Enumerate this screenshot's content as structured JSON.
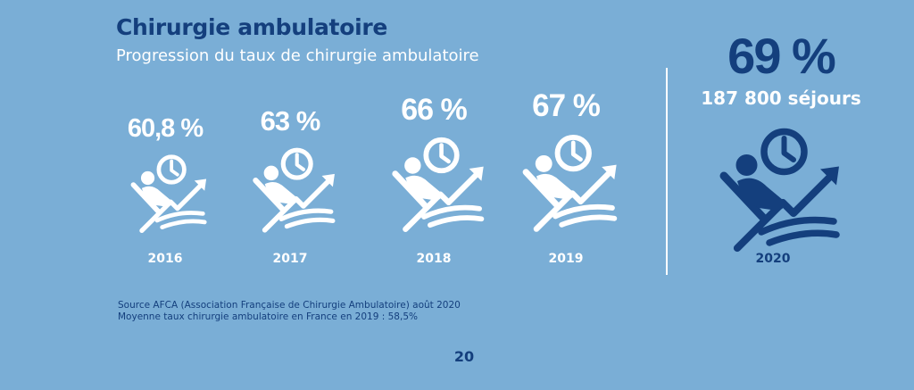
{
  "title": "Chirurgie ambulatoire",
  "subtitle": "Progression du taux de chirurgie ambulatoire",
  "chart_data": {
    "type": "table",
    "title": "Chirurgie ambulatoire",
    "subtitle": "Progression du taux de chirurgie ambulatoire",
    "categories": [
      "2016",
      "2017",
      "2018",
      "2019",
      "2020"
    ],
    "labels": [
      "60,8 %",
      "63 %",
      "66 %",
      "67 %",
      "69 %"
    ],
    "values": [
      60.8,
      63,
      66,
      67,
      69
    ],
    "unit": "%",
    "highlight": {
      "year": "2020",
      "label": "69 %",
      "stays_text": "187 800 séjours",
      "stays": 187800
    },
    "colors": {
      "background": "#7aaed6",
      "accent": "#143f7d",
      "regular": "#ffffff"
    }
  },
  "source": {
    "line1": "Source AFCA (Association Française de Chirurgie Ambulatoire) août 2020",
    "line2": "Moyenne taux chirurgie ambulatoire en France en 2019 : 58,5%"
  },
  "page_number": "20",
  "icons": {
    "item_icon": "reclining-patient-clock-trend-icon"
  }
}
